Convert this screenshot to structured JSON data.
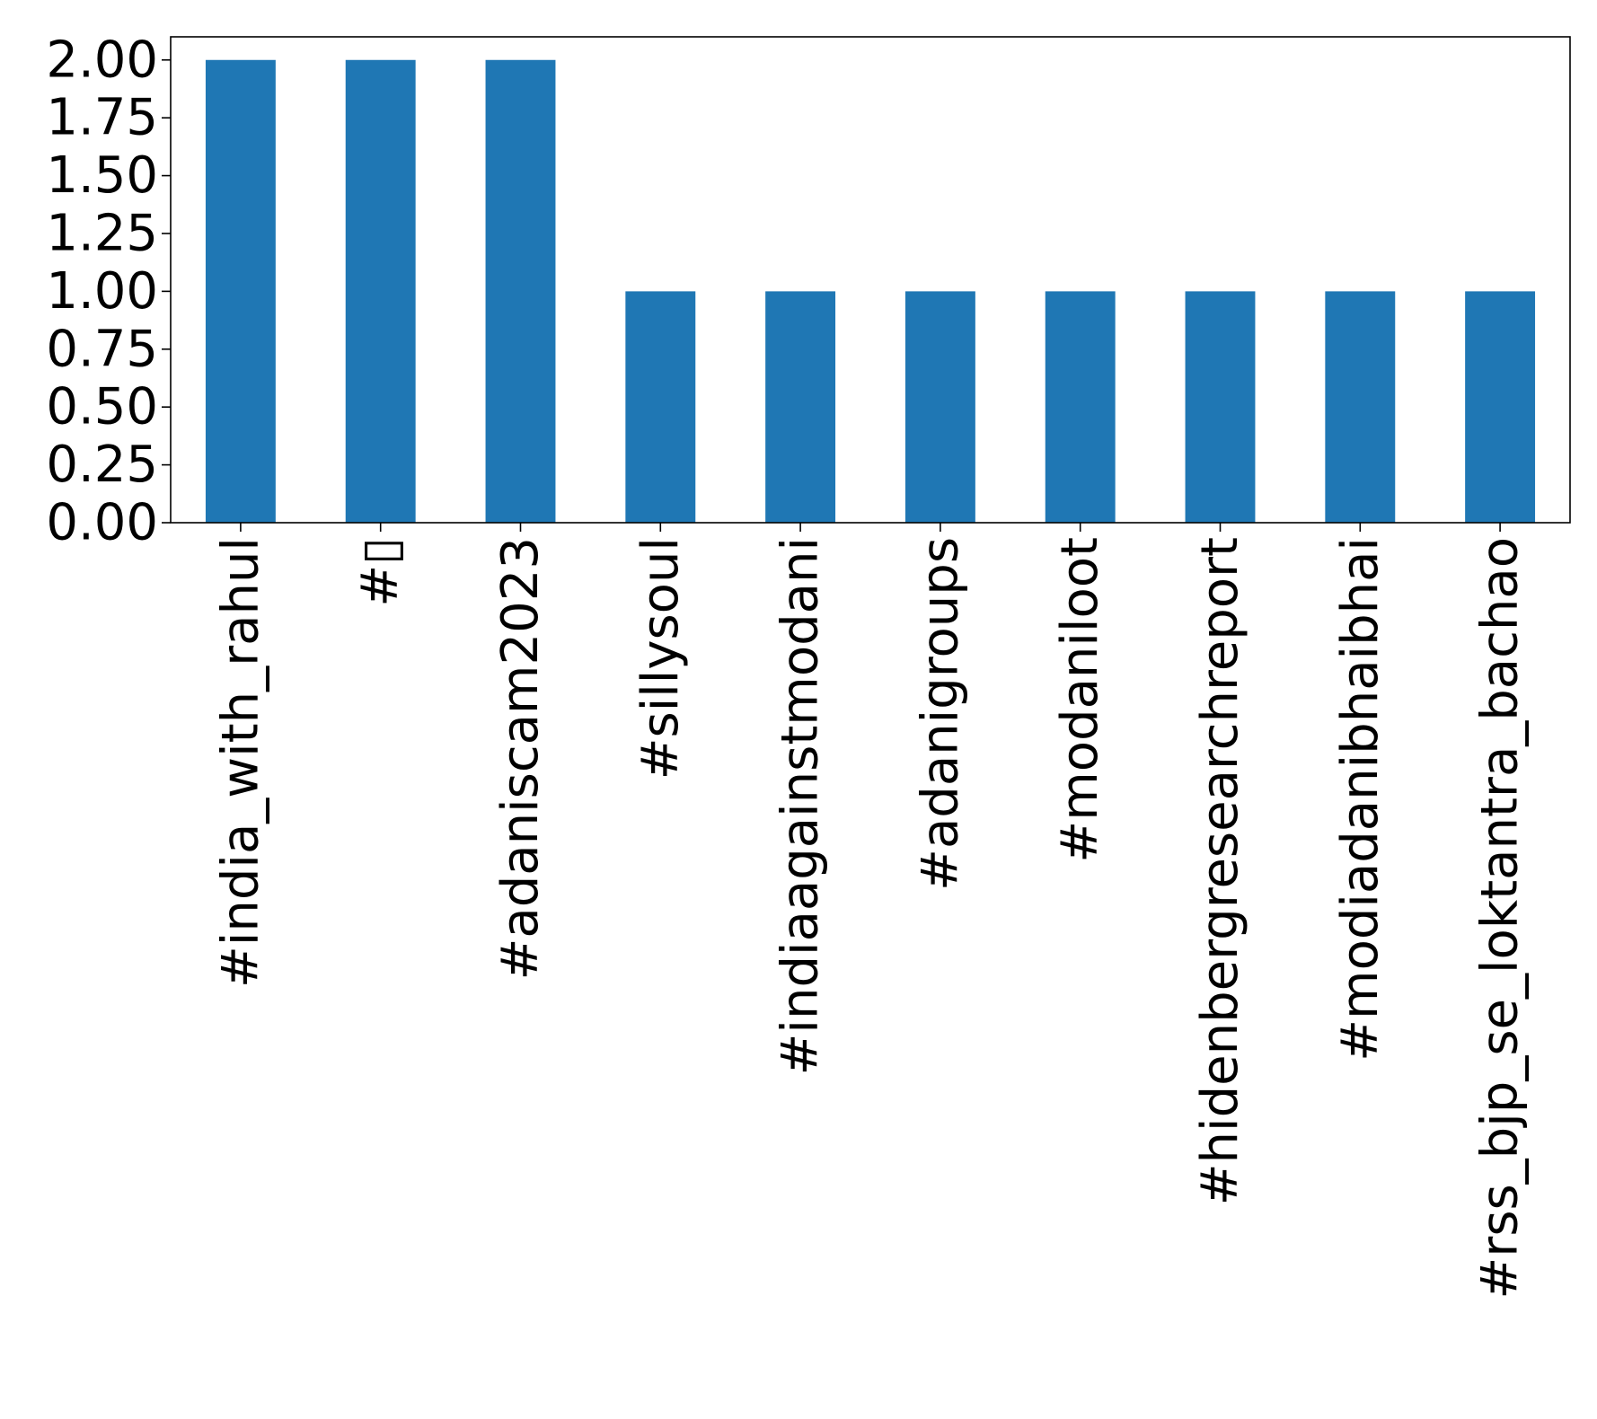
{
  "chart_data": {
    "type": "bar",
    "categories": [
      "#india_with_rahul",
      "#▯",
      "#adaniscam2023",
      "#sillysoul",
      "#indiaagainstmodani",
      "#adanigroups",
      "#modaniloot",
      "#hidenbergresearchreport",
      "#modiadanibhaibhai",
      "#rss_bjp_se_loktantra_bachao"
    ],
    "values": [
      2,
      2,
      2,
      1,
      1,
      1,
      1,
      1,
      1,
      1
    ],
    "ylim": [
      0,
      2.1
    ],
    "yticks": [
      "0.00",
      "0.25",
      "0.50",
      "0.75",
      "1.00",
      "1.25",
      "1.50",
      "1.75",
      "2.00"
    ],
    "title": "",
    "xlabel": "",
    "ylabel": "",
    "bar_color": "#1f77b4",
    "grid": false,
    "legend": false
  }
}
